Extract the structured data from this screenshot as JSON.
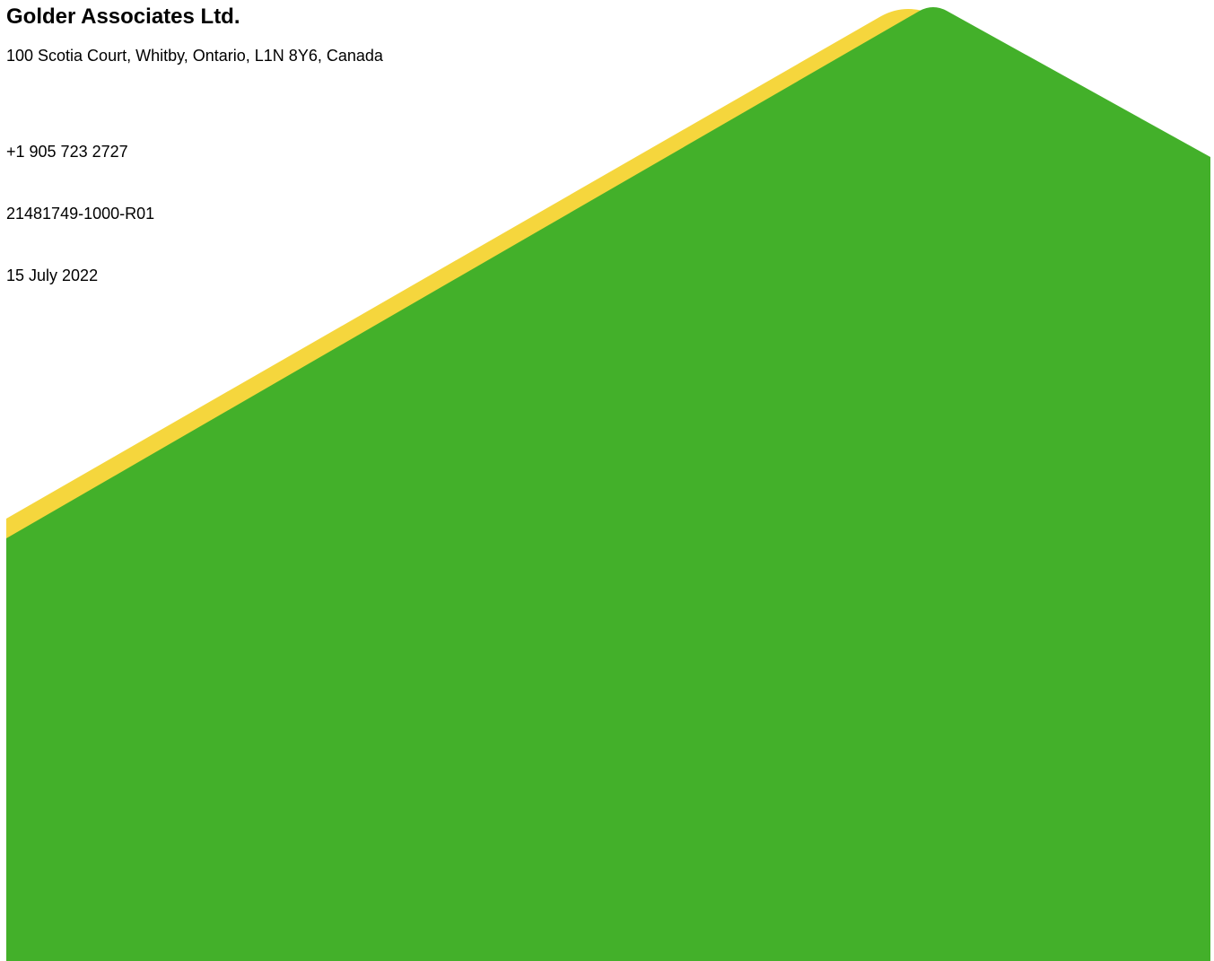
{
  "letterhead": {
    "company_name": "Golder Associates Ltd.",
    "address": "100 Scotia Court, Whitby, Ontario, L1N 8Y6, Canada",
    "phone": "+1 905 723 2727",
    "reference_number": "21481749-1000-R01",
    "date": "15 July 2022"
  },
  "colors": {
    "green_shape": "#43b02a",
    "yellow_band": "#f5d63d",
    "background": "#ffffff",
    "text": "#000000"
  }
}
